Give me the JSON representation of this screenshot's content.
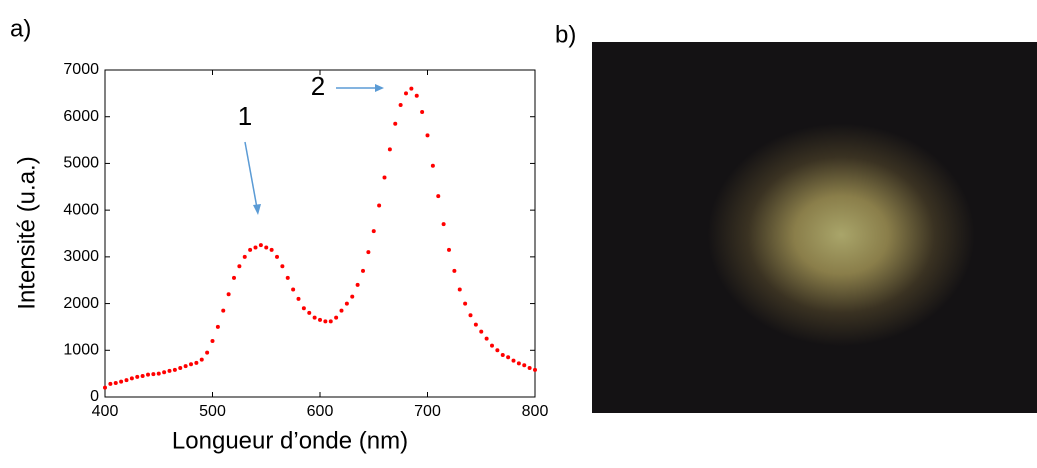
{
  "chart_data": {
    "type": "scatter",
    "xlabel": "Longueur d’onde (nm)",
    "ylabel": "Intensité (u.a.)",
    "annotations": [
      "a)",
      "b)",
      "1",
      "2"
    ],
    "color": "#ff0000",
    "xlim": [
      400,
      800
    ],
    "xticks": [
      400,
      500,
      600,
      700,
      800
    ],
    "ylim": [
      0,
      7000
    ],
    "yticks": [
      0,
      1000,
      2000,
      3000,
      4000,
      5000,
      6000,
      7000
    ],
    "x": [
      400,
      405,
      410,
      415,
      420,
      425,
      430,
      435,
      440,
      445,
      450,
      455,
      460,
      465,
      470,
      475,
      480,
      485,
      490,
      495,
      500,
      505,
      510,
      515,
      520,
      525,
      530,
      535,
      540,
      545,
      550,
      555,
      560,
      565,
      570,
      575,
      580,
      585,
      590,
      595,
      600,
      605,
      610,
      615,
      620,
      625,
      630,
      635,
      640,
      645,
      650,
      655,
      660,
      665,
      670,
      675,
      680,
      685,
      690,
      695,
      700,
      705,
      710,
      715,
      720,
      725,
      730,
      735,
      740,
      745,
      750,
      755,
      760,
      765,
      770,
      775,
      780,
      785,
      790,
      795,
      800
    ],
    "values": [
      200,
      280,
      300,
      330,
      360,
      400,
      430,
      450,
      480,
      490,
      500,
      530,
      560,
      580,
      620,
      660,
      700,
      730,
      800,
      950,
      1200,
      1500,
      1850,
      2200,
      2550,
      2800,
      3000,
      3150,
      3200,
      3250,
      3200,
      3150,
      3000,
      2800,
      2550,
      2300,
      2100,
      1900,
      1800,
      1700,
      1650,
      1620,
      1620,
      1700,
      1850,
      2000,
      2150,
      2400,
      2700,
      3100,
      3550,
      4100,
      4700,
      5300,
      5850,
      6250,
      6500,
      6600,
      6450,
      6100,
      5600,
      4950,
      4300,
      3700,
      3150,
      2700,
      2300,
      2000,
      1750,
      1550,
      1400,
      1250,
      1100,
      1000,
      900,
      850,
      780,
      720,
      680,
      620,
      580
    ]
  }
}
